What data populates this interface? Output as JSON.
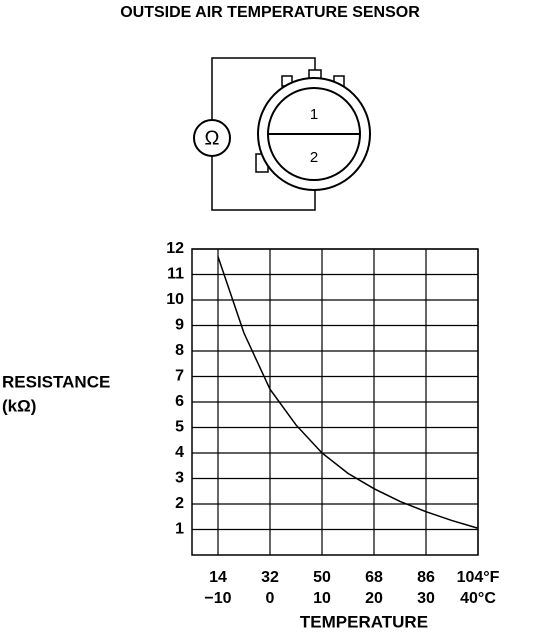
{
  "title": "OUTSIDE AIR TEMPERATURE SENSOR",
  "diagram": {
    "meter_symbol": "Ω",
    "terminals": [
      "1",
      "2"
    ]
  },
  "chart_data": {
    "type": "line",
    "y_label_lines": [
      "RESISTANCE",
      "(kΩ)"
    ],
    "x_label": "TEMPERATURE",
    "x": [
      -10,
      -5,
      0,
      5,
      10,
      15,
      20,
      25,
      30,
      35,
      40
    ],
    "series": [
      {
        "color": "#000000",
        "values": [
          11.7,
          8.7,
          6.5,
          5.1,
          4.0,
          3.2,
          2.6,
          2.1,
          1.7,
          1.35,
          1.05
        ]
      }
    ],
    "xlim": [
      -15,
      40
    ],
    "xticks": [
      {
        "value": -10,
        "label": "−10"
      },
      0,
      10,
      20,
      30,
      {
        "value": 40,
        "label": "40°C"
      }
    ],
    "x2lim": [
      5,
      104
    ],
    "x2ticks": [
      14,
      32,
      50,
      68,
      86,
      {
        "value": 104,
        "label": "104°F"
      }
    ],
    "ylim": [
      0,
      12
    ],
    "yticks": [
      1,
      2,
      3,
      4,
      5,
      6,
      7,
      8,
      9,
      10,
      11,
      12
    ],
    "grid": true
  }
}
